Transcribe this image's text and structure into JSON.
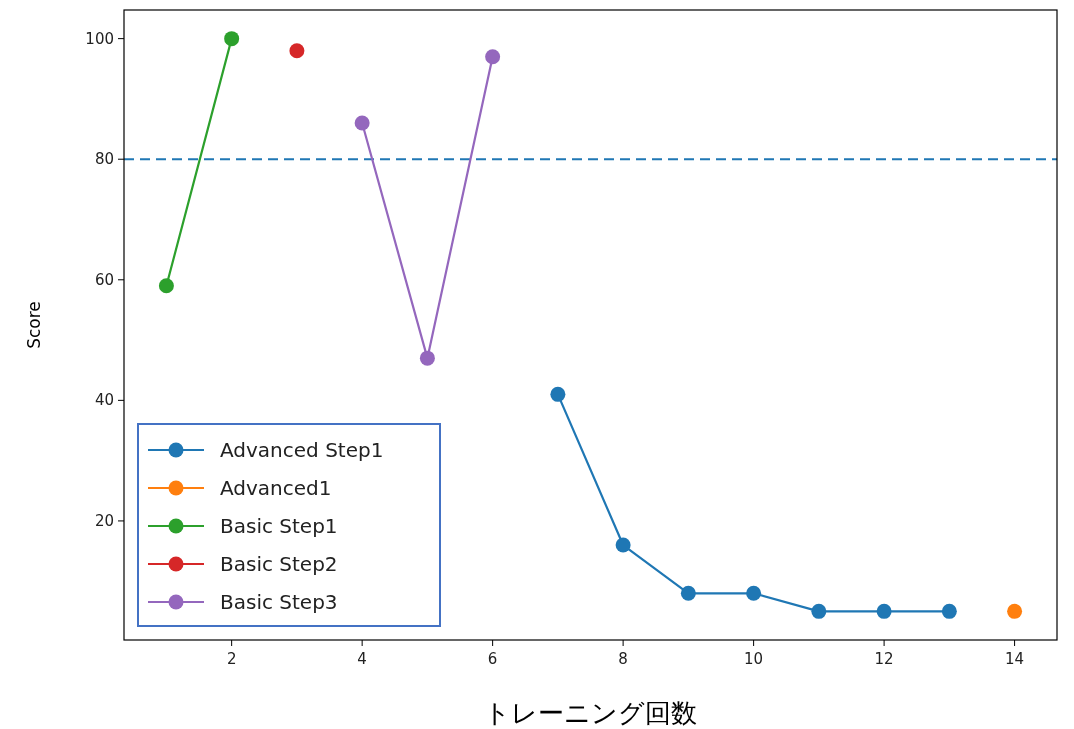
{
  "chart_data": {
    "type": "line",
    "xlabel": "トレーニング回数",
    "ylabel": "Score",
    "xlim": [
      0.35,
      14.65
    ],
    "ylim": [
      0.25,
      104.75
    ],
    "xticks": [
      2,
      4,
      6,
      8,
      10,
      12,
      14
    ],
    "yticks": [
      20,
      40,
      60,
      80,
      100
    ],
    "marker": "circle",
    "line_style": "solid",
    "legend": "bottom left",
    "grid": false,
    "ref_lines": [
      {
        "axis": "y",
        "value": 80,
        "color": "#1f77b4",
        "line_style": "dashed"
      }
    ],
    "series": [
      {
        "name": "Advanced Step1",
        "color": "#1f77b4",
        "x": [
          7,
          8,
          9,
          10,
          11,
          12,
          13
        ],
        "values": [
          41,
          16,
          8,
          8,
          5,
          5,
          5
        ]
      },
      {
        "name": "Advanced1",
        "color": "#ff7f0e",
        "x": [
          14
        ],
        "values": [
          5
        ]
      },
      {
        "name": "Basic Step1",
        "color": "#2ca02c",
        "x": [
          1,
          2
        ],
        "values": [
          59,
          100
        ]
      },
      {
        "name": "Basic Step2",
        "color": "#d62728",
        "x": [
          3
        ],
        "values": [
          98
        ]
      },
      {
        "name": "Basic Step3",
        "color": "#9467bd",
        "x": [
          4,
          5,
          6
        ],
        "values": [
          86,
          47,
          97
        ]
      }
    ]
  }
}
